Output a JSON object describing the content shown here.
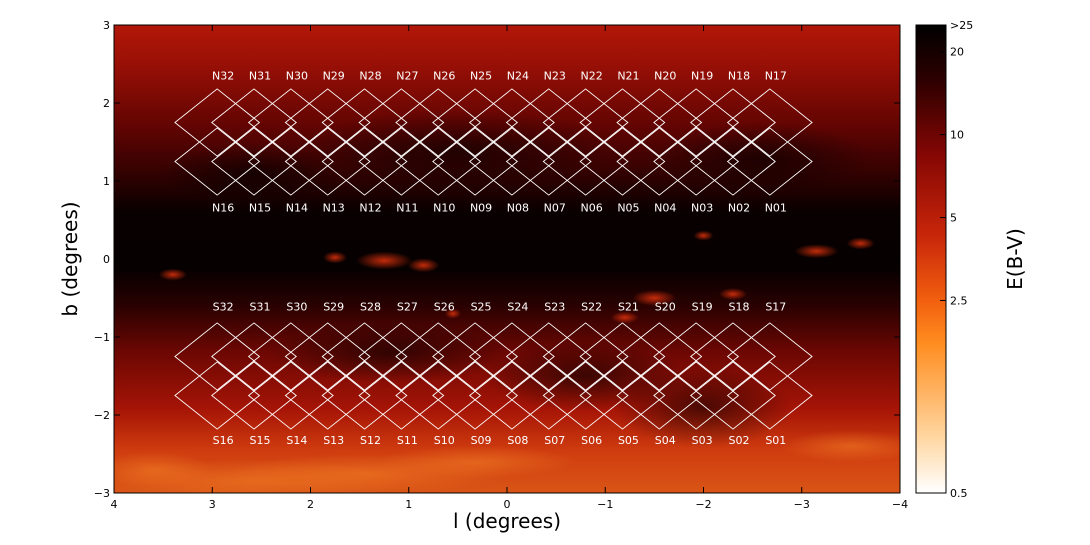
{
  "chart_data": {
    "type": "heatmap",
    "title": "",
    "xlabel": "l (degrees)",
    "ylabel": "b (degrees)",
    "xlim": [
      4,
      -4
    ],
    "ylim": [
      -3,
      3
    ],
    "x_ticks": [
      4,
      3,
      2,
      1,
      0,
      -1,
      -2,
      -3,
      -4
    ],
    "x_tick_labels": [
      "4",
      "3",
      "2",
      "1",
      "0",
      "−1",
      "−2",
      "−3",
      "−4"
    ],
    "y_ticks": [
      -3,
      -2,
      -1,
      0,
      1,
      2,
      3
    ],
    "y_tick_labels": [
      "−3",
      "−2",
      "−1",
      "0",
      "1",
      "2",
      "3"
    ],
    "grid": false,
    "colorbar": {
      "label": "E(B-V)",
      "scale": "log",
      "range": [
        0.5,
        25
      ],
      "ticks": [
        0.5,
        2.5,
        5,
        10,
        20,
        25
      ],
      "tick_labels": [
        "0.5",
        "2.5",
        "5",
        "10",
        "20",
        ">25"
      ],
      "colormap": [
        "#ffffff",
        "#ffd39a",
        "#ff8a1e",
        "#e4380c",
        "#a80d06",
        "#5a0202",
        "#000000"
      ]
    },
    "fields": {
      "north_centers_b": [
        1.75,
        1.25
      ],
      "south_centers_b": [
        -1.25,
        -1.75
      ],
      "centers_l": [
        2.95,
        2.575,
        2.2,
        1.825,
        1.45,
        1.075,
        0.7,
        0.325,
        -0.05,
        -0.425,
        -0.8,
        -1.175,
        -1.55,
        -1.925,
        -2.3,
        -2.675
      ],
      "half_diagonal_deg": 0.43,
      "label_rows": [
        {
          "row": "north_upper",
          "b": 2.35,
          "labels": [
            "N32",
            "N31",
            "N30",
            "N29",
            "N28",
            "N27",
            "N26",
            "N25",
            "N24",
            "N23",
            "N22",
            "N21",
            "N20",
            "N19",
            "N18",
            "N17"
          ]
        },
        {
          "row": "north_lower",
          "b": 0.66,
          "labels": [
            "N16",
            "N15",
            "N14",
            "N13",
            "N12",
            "N11",
            "N10",
            "N09",
            "N08",
            "N07",
            "N06",
            "N05",
            "N04",
            "N03",
            "N02",
            "N01"
          ]
        },
        {
          "row": "south_upper",
          "b": -0.61,
          "labels": [
            "S32",
            "S31",
            "S30",
            "S29",
            "S28",
            "S27",
            "S26",
            "S25",
            "S24",
            "S23",
            "S22",
            "S21",
            "S20",
            "S19",
            "S18",
            "S17"
          ]
        },
        {
          "row": "south_lower",
          "b": -2.32,
          "labels": [
            "S16",
            "S15",
            "S14",
            "S13",
            "S12",
            "S11",
            "S10",
            "S09",
            "S08",
            "S07",
            "S06",
            "S05",
            "S04",
            "S03",
            "S02",
            "S01"
          ]
        }
      ]
    }
  }
}
